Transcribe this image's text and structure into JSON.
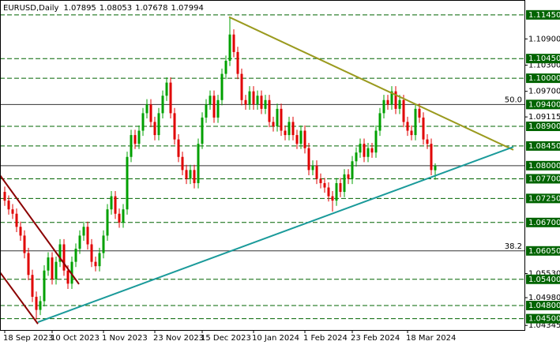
{
  "chart_data": {
    "type": "candlestick",
    "title": "EURUSD,Daily",
    "ylim": [
      1.0424,
      1.1179
    ],
    "yticks": [
      {
        "value": 1.109,
        "label": "1.10900"
      },
      {
        "value": 1.103,
        "label": "1.10300"
      },
      {
        "value": 1.097,
        "label": "1.09700"
      },
      {
        "value": 1.09115,
        "label": "1.09115"
      },
      {
        "value": 1.0553,
        "label": "1.05530"
      },
      {
        "value": 1.0498,
        "label": "1.04980"
      },
      {
        "value": 1.04345,
        "label": "1.04345"
      }
    ],
    "xticks": [
      {
        "value": 0,
        "label": "18 Sep 2023"
      },
      {
        "value": 12,
        "label": "10 Oct 2023"
      },
      {
        "value": 25,
        "label": "1 Nov 2023"
      },
      {
        "value": 38,
        "label": "23 Nov 2023"
      },
      {
        "value": 50,
        "label": "15 Dec 2023"
      },
      {
        "value": 63,
        "label": "10 Jan 2024"
      },
      {
        "value": 76,
        "label": "1 Feb 2024"
      },
      {
        "value": 88,
        "label": "23 Feb 2024"
      },
      {
        "value": 102,
        "label": "18 Mar 2024"
      }
    ],
    "levels": [
      {
        "value": 1.1145,
        "label": "1.11450",
        "solid": false
      },
      {
        "value": 1.1045,
        "label": "1.10450",
        "solid": false
      },
      {
        "value": 1.1,
        "label": "1.10000",
        "solid": false
      },
      {
        "value": 1.094,
        "label": "1.09400",
        "solid": true
      },
      {
        "value": 1.089,
        "label": "1.08900",
        "solid": false
      },
      {
        "value": 1.0845,
        "label": "1.08450",
        "solid": false
      },
      {
        "value": 1.08,
        "label": "1.08000",
        "solid": true
      },
      {
        "value": 1.077,
        "label": "1.07700",
        "solid": false
      },
      {
        "value": 1.0725,
        "label": "1.07250",
        "solid": false
      },
      {
        "value": 1.067,
        "label": "1.06700",
        "solid": false
      },
      {
        "value": 1.0605,
        "label": "1.06050",
        "solid": true
      },
      {
        "value": 1.054,
        "label": "1.05400",
        "solid": false
      },
      {
        "value": 1.048,
        "label": "1.04800",
        "solid": false
      },
      {
        "value": 1.045,
        "label": "1.04500",
        "solid": false
      }
    ],
    "fib_labels": [
      {
        "text": "50.0",
        "price": 1.094
      },
      {
        "text": "38.2",
        "price": 1.0605
      }
    ],
    "up_color": "#00a000",
    "down_color": "#e00000",
    "level_color": "#006400",
    "trendlines": [
      {
        "color": "#9a9a1e",
        "x": [
          56.8,
          128.8
        ],
        "price": [
          1.114,
          1.0836
        ]
      },
      {
        "color": "#1a9a9a",
        "x": [
          8.4,
          128.8
        ],
        "price": [
          1.0442,
          1.0843
        ]
      },
      {
        "color": "#8b0000",
        "x": [
          -1.2,
          18.8
        ],
        "price": [
          1.0778,
          1.0529
        ]
      },
      {
        "color": "#8b0000",
        "x": [
          -1.2,
          8.4
        ],
        "price": [
          1.0556,
          1.0438
        ]
      }
    ],
    "open": [
      1.074,
      1.072,
      1.07,
      1.069,
      1.066,
      1.064,
      1.06,
      1.055,
      1.05,
      1.047,
      1.049,
      1.056,
      1.059,
      1.054,
      1.058,
      1.062,
      1.056,
      1.053,
      1.058,
      1.061,
      1.064,
      1.066,
      1.062,
      1.058,
      1.057,
      1.06,
      1.064,
      1.07,
      1.073,
      1.069,
      1.067,
      1.07,
      1.082,
      1.087,
      1.085,
      1.088,
      1.092,
      1.094,
      1.09,
      1.087,
      1.092,
      1.096,
      1.099,
      1.092,
      1.086,
      1.082,
      1.079,
      1.077,
      1.079,
      1.076,
      1.085,
      1.091,
      1.094,
      1.096,
      1.091,
      1.095,
      1.101,
      1.104,
      1.11,
      1.106,
      1.101,
      1.095,
      1.094,
      1.097,
      1.094,
      1.096,
      1.093,
      1.095,
      1.09,
      1.089,
      1.093,
      1.088,
      1.087,
      1.09,
      1.087,
      1.085,
      1.088,
      1.084,
      1.079,
      1.08,
      1.077,
      1.076,
      1.075,
      1.073,
      1.072,
      1.076,
      1.074,
      1.078,
      1.077,
      1.081,
      1.083,
      1.085,
      1.082,
      1.084,
      1.083,
      1.088,
      1.092,
      1.095,
      1.094,
      1.097,
      1.093,
      1.095,
      1.09,
      1.088,
      1.087,
      1.093,
      1.091,
      1.086,
      1.085,
      1.07895
    ],
    "high": [
      1.0752,
      1.0732,
      1.0712,
      1.0702,
      1.0672,
      1.0652,
      1.0612,
      1.0562,
      1.0512,
      1.0502,
      1.0572,
      1.0602,
      1.0602,
      1.0592,
      1.0632,
      1.0632,
      1.0572,
      1.0592,
      1.0622,
      1.0652,
      1.0672,
      1.0672,
      1.0632,
      1.0592,
      1.0612,
      1.0652,
      1.0712,
      1.0742,
      1.0742,
      1.0702,
      1.0712,
      1.0832,
      1.0882,
      1.0882,
      1.0892,
      1.0932,
      1.0952,
      1.0952,
      1.0912,
      1.0932,
      1.0972,
      1.1002,
      1.1002,
      1.0932,
      1.0872,
      1.0832,
      1.0802,
      1.0802,
      1.0802,
      1.0862,
      1.0922,
      1.0952,
      1.0972,
      1.0972,
      1.0962,
      1.1022,
      1.1052,
      1.1139,
      1.1112,
      1.1072,
      1.1022,
      1.0962,
      1.0982,
      1.0982,
      1.0972,
      1.0972,
      1.0962,
      1.0962,
      1.0912,
      1.0942,
      1.0942,
      1.0892,
      1.0912,
      1.0912,
      1.0882,
      1.0892,
      1.0892,
      1.0852,
      1.0812,
      1.0812,
      1.0782,
      1.0772,
      1.0762,
      1.0742,
      1.0772,
      1.0772,
      1.0792,
      1.0792,
      1.0822,
      1.0842,
      1.0862,
      1.0862,
      1.0852,
      1.0852,
      1.0892,
      1.0932,
      1.0962,
      1.0962,
      1.0982,
      1.0982,
      1.0962,
      1.0962,
      1.0912,
      1.0892,
      1.0942,
      1.0942,
      1.0922,
      1.0872,
      1.0862,
      1.08053
    ],
    "low": [
      1.0708,
      1.0688,
      1.0678,
      1.0648,
      1.0628,
      1.0588,
      1.0538,
      1.0488,
      1.0448,
      1.0458,
      1.0478,
      1.0548,
      1.0528,
      1.0528,
      1.0568,
      1.0548,
      1.0518,
      1.0518,
      1.0568,
      1.0598,
      1.0628,
      1.0608,
      1.0568,
      1.0558,
      1.0558,
      1.0588,
      1.0628,
      1.0688,
      1.0678,
      1.0658,
      1.0658,
      1.0688,
      1.0808,
      1.0838,
      1.0838,
      1.0868,
      1.0908,
      1.0888,
      1.0858,
      1.0858,
      1.0908,
      1.0948,
      1.0908,
      1.0848,
      1.0808,
      1.0778,
      1.0758,
      1.0758,
      1.0748,
      1.0748,
      1.0838,
      1.0898,
      1.0928,
      1.0898,
      1.0898,
      1.0938,
      1.0998,
      1.1028,
      1.1048,
      1.0998,
      1.0938,
      1.0928,
      1.0928,
      1.0928,
      1.0928,
      1.0918,
      1.0918,
      1.0888,
      1.0878,
      1.0878,
      1.0868,
      1.0858,
      1.0858,
      1.0858,
      1.0838,
      1.0838,
      1.0828,
      1.0778,
      1.0778,
      1.0758,
      1.0748,
      1.0738,
      1.0718,
      1.0695,
      1.0708,
      1.0728,
      1.0728,
      1.0758,
      1.0758,
      1.0798,
      1.0818,
      1.0808,
      1.0808,
      1.0818,
      1.0818,
      1.0868,
      1.0908,
      1.0928,
      1.0928,
      1.0918,
      1.0918,
      1.0888,
      1.0868,
      1.0858,
      1.0858,
      1.0898,
      1.0848,
      1.0838,
      1.0778,
      1.07678
    ],
    "close": [
      1.072,
      1.07,
      1.069,
      1.066,
      1.064,
      1.06,
      1.055,
      1.05,
      1.047,
      1.049,
      1.056,
      1.059,
      1.054,
      1.058,
      1.062,
      1.056,
      1.053,
      1.058,
      1.061,
      1.064,
      1.066,
      1.062,
      1.058,
      1.057,
      1.06,
      1.064,
      1.07,
      1.073,
      1.069,
      1.067,
      1.07,
      1.082,
      1.087,
      1.085,
      1.088,
      1.092,
      1.094,
      1.09,
      1.087,
      1.092,
      1.096,
      1.099,
      1.092,
      1.086,
      1.082,
      1.079,
      1.077,
      1.079,
      1.076,
      1.085,
      1.091,
      1.094,
      1.096,
      1.091,
      1.095,
      1.101,
      1.104,
      1.11,
      1.106,
      1.101,
      1.095,
      1.094,
      1.097,
      1.094,
      1.096,
      1.093,
      1.095,
      1.09,
      1.089,
      1.093,
      1.088,
      1.087,
      1.09,
      1.087,
      1.085,
      1.088,
      1.084,
      1.079,
      1.08,
      1.077,
      1.076,
      1.075,
      1.073,
      1.072,
      1.076,
      1.074,
      1.078,
      1.077,
      1.081,
      1.083,
      1.085,
      1.082,
      1.084,
      1.083,
      1.088,
      1.092,
      1.095,
      1.094,
      1.097,
      1.093,
      1.095,
      1.09,
      1.088,
      1.087,
      1.093,
      1.091,
      1.086,
      1.085,
      1.079,
      1.07994
    ]
  }
}
